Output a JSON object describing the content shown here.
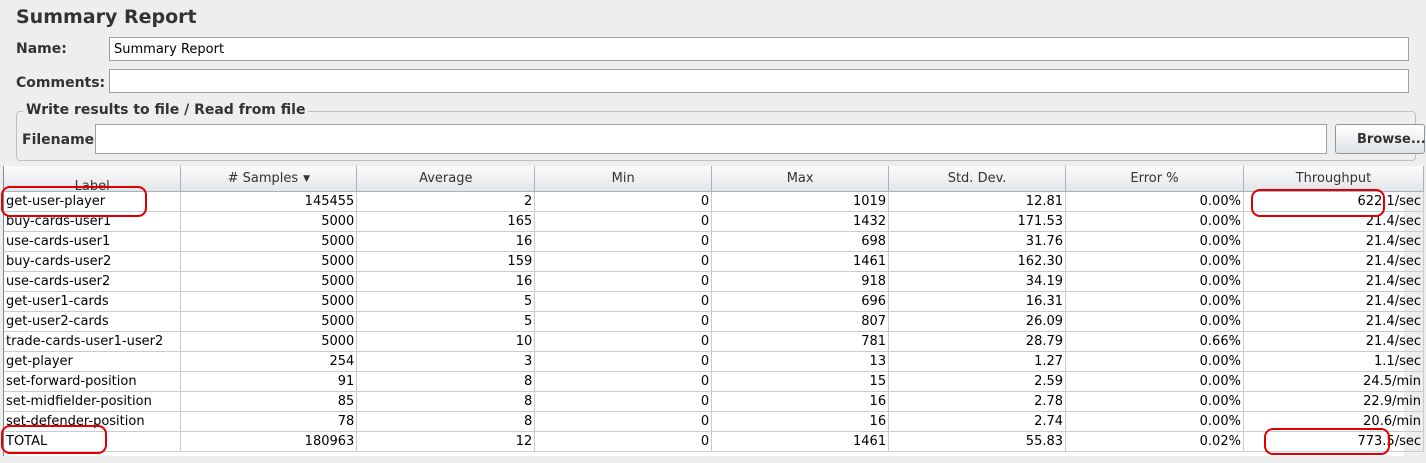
{
  "panel": {
    "title": "Summary Report",
    "name_label": "Name:",
    "name_value": "Summary Report",
    "comments_label": "Comments:",
    "comments_value": ""
  },
  "file_group": {
    "title": "Write results to file / Read from file",
    "filename_label": "Filename",
    "filename_value": "",
    "browse_label": "Browse..."
  },
  "table": {
    "columns": [
      "Label",
      "# Samples",
      "Average",
      "Min",
      "Max",
      "Std. Dev.",
      "Error %",
      "Throughput"
    ],
    "sort_column": "# Samples",
    "sort_icon": "sort-descending-icon",
    "rows": [
      [
        "get-user-player",
        "145455",
        "2",
        "0",
        "1019",
        "12.81",
        "0.00%",
        "622.1/sec"
      ],
      [
        "buy-cards-user1",
        "5000",
        "165",
        "0",
        "1432",
        "171.53",
        "0.00%",
        "21.4/sec"
      ],
      [
        "use-cards-user1",
        "5000",
        "16",
        "0",
        "698",
        "31.76",
        "0.00%",
        "21.4/sec"
      ],
      [
        "buy-cards-user2",
        "5000",
        "159",
        "0",
        "1461",
        "162.30",
        "0.00%",
        "21.4/sec"
      ],
      [
        "use-cards-user2",
        "5000",
        "16",
        "0",
        "918",
        "34.19",
        "0.00%",
        "21.4/sec"
      ],
      [
        "get-user1-cards",
        "5000",
        "5",
        "0",
        "696",
        "16.31",
        "0.00%",
        "21.4/sec"
      ],
      [
        "get-user2-cards",
        "5000",
        "5",
        "0",
        "807",
        "26.09",
        "0.00%",
        "21.4/sec"
      ],
      [
        "trade-cards-user1-user2",
        "5000",
        "10",
        "0",
        "781",
        "28.79",
        "0.66%",
        "21.4/sec"
      ],
      [
        "get-player",
        "254",
        "3",
        "0",
        "13",
        "1.27",
        "0.00%",
        "1.1/sec"
      ],
      [
        "set-forward-position",
        "91",
        "8",
        "0",
        "15",
        "2.59",
        "0.00%",
        "24.5/min"
      ],
      [
        "set-midfielder-position",
        "85",
        "8",
        "0",
        "16",
        "2.78",
        "0.00%",
        "22.9/min"
      ],
      [
        "set-defender-position",
        "78",
        "8",
        "0",
        "16",
        "2.74",
        "0.00%",
        "20.6/min"
      ]
    ],
    "total": [
      "TOTAL",
      "180963",
      "12",
      "0",
      "1461",
      "55.83",
      "0.02%",
      "773.5/sec"
    ]
  },
  "annotation_color": "#e00000"
}
